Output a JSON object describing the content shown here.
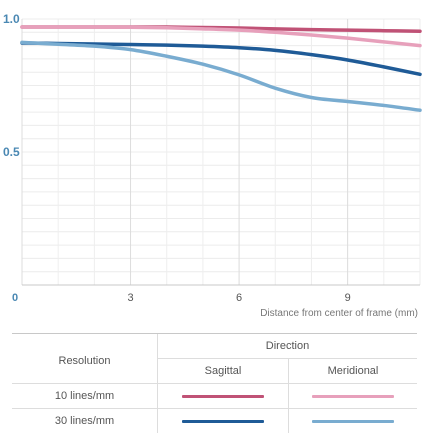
{
  "chart_data": {
    "type": "line",
    "xlabel": "Distance from center of frame (mm)",
    "ylabel": "",
    "xlim": [
      0,
      11
    ],
    "ylim": [
      0,
      1.0
    ],
    "x_ticks": [
      "0",
      "3",
      "6",
      "9"
    ],
    "y_ticks": [
      "0.5",
      "1.0"
    ],
    "grid": true,
    "series": [
      {
        "resolution": "10 lines/mm",
        "direction": "Sagittal",
        "color": "#c05276",
        "x": [
          0,
          1,
          2,
          3,
          4,
          5,
          6,
          7,
          8,
          9,
          10,
          11
        ],
        "y": [
          0.97,
          0.97,
          0.97,
          0.97,
          0.97,
          0.968,
          0.966,
          0.963,
          0.96,
          0.958,
          0.956,
          0.954
        ]
      },
      {
        "resolution": "10 lines/mm",
        "direction": "Meridional",
        "color": "#e7a0bb",
        "x": [
          0,
          1,
          2,
          3,
          4,
          5,
          6,
          7,
          8,
          9,
          10,
          11
        ],
        "y": [
          0.97,
          0.97,
          0.97,
          0.969,
          0.967,
          0.963,
          0.958,
          0.95,
          0.94,
          0.928,
          0.914,
          0.9
        ]
      },
      {
        "resolution": "30 lines/mm",
        "direction": "Sagittal",
        "color": "#1f5b97",
        "x": [
          0,
          1,
          2,
          3,
          4,
          5,
          6,
          7,
          8,
          9,
          10,
          11
        ],
        "y": [
          0.91,
          0.908,
          0.906,
          0.904,
          0.902,
          0.898,
          0.892,
          0.882,
          0.866,
          0.846,
          0.82,
          0.792
        ]
      },
      {
        "resolution": "30 lines/mm",
        "direction": "Meridional",
        "color": "#79acd0",
        "x": [
          0,
          1,
          2,
          3,
          4,
          5,
          6,
          7,
          8,
          9,
          10,
          11
        ],
        "y": [
          0.912,
          0.905,
          0.898,
          0.885,
          0.86,
          0.83,
          0.79,
          0.74,
          0.705,
          0.69,
          0.675,
          0.657
        ]
      }
    ]
  },
  "legend": {
    "resolution_header": "Resolution",
    "direction_header": "Direction",
    "columns": [
      "Sagittal",
      "Meridional"
    ],
    "rows": [
      {
        "label": "10 lines/mm",
        "colors": [
          "#c05276",
          "#e7a0bb"
        ]
      },
      {
        "label": "30 lines/mm",
        "colors": [
          "#1f5b97",
          "#79acd0"
        ]
      }
    ]
  }
}
